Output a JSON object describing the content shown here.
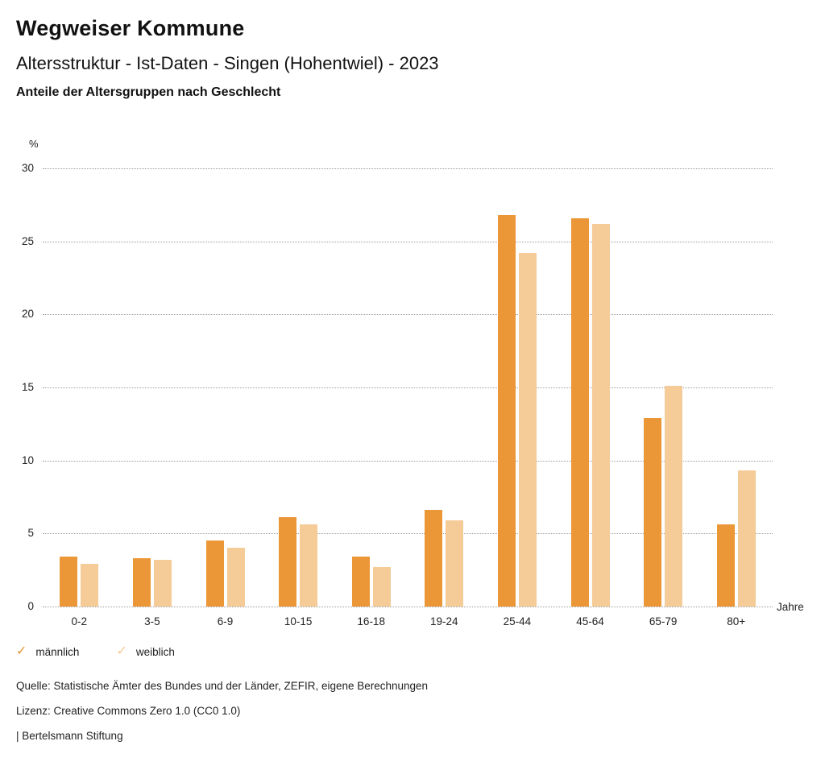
{
  "header": {
    "title": "Wegweiser Kommune",
    "subtitle": "Altersstruktur - Ist-Daten - Singen (Hohentwiel) - 2023",
    "heading": "Anteile der Altersgruppen nach Geschlecht"
  },
  "chart_data": {
    "type": "bar",
    "title": "Anteile der Altersgruppen nach Geschlecht",
    "ylabel": "%",
    "xlabel": "Jahre",
    "categories": [
      "0-2",
      "3-5",
      "6-9",
      "10-15",
      "16-18",
      "19-24",
      "25-44",
      "45-64",
      "65-79",
      "80+"
    ],
    "series": [
      {
        "name": "männlich",
        "color": "#EC9737",
        "values": [
          3.4,
          3.3,
          4.5,
          6.1,
          3.4,
          6.6,
          26.8,
          26.6,
          12.9,
          5.6
        ]
      },
      {
        "name": "weiblich",
        "color": "#F5CB98",
        "values": [
          2.9,
          3.2,
          4.0,
          5.6,
          2.7,
          5.9,
          24.2,
          26.2,
          15.1,
          9.3
        ]
      }
    ],
    "ylim": [
      0,
      30
    ],
    "yticks": [
      0,
      5,
      10,
      15,
      20,
      25,
      30
    ],
    "grid": "horizontal-dotted",
    "legend_position": "bottom-left"
  },
  "legend": {
    "check_glyph": "✓"
  },
  "footer": {
    "source": "Quelle: Statistische Ämter des Bundes und der Länder, ZEFIR, eigene Berechnungen",
    "license": "Lizenz: Creative Commons Zero 1.0 (CC0 1.0)",
    "attribution": "| Bertelsmann Stiftung"
  }
}
